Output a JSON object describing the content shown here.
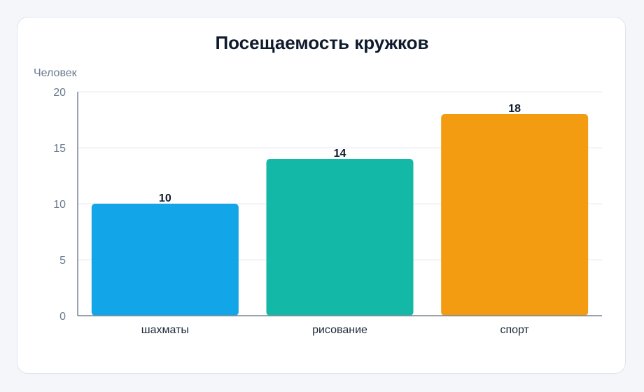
{
  "chart_data": {
    "type": "bar",
    "title": "Посещаемость кружков",
    "ylabel": "Человек",
    "xlabel": "",
    "categories": [
      "шахматы",
      "рисование",
      "спорт"
    ],
    "values": [
      10,
      14,
      18
    ],
    "ylim": [
      0,
      20
    ],
    "yticks": [
      0,
      5,
      10,
      15,
      20
    ],
    "colors": [
      "#12a5e8",
      "#14b8a6",
      "#f39c12"
    ],
    "grid": true,
    "legend": "none"
  }
}
